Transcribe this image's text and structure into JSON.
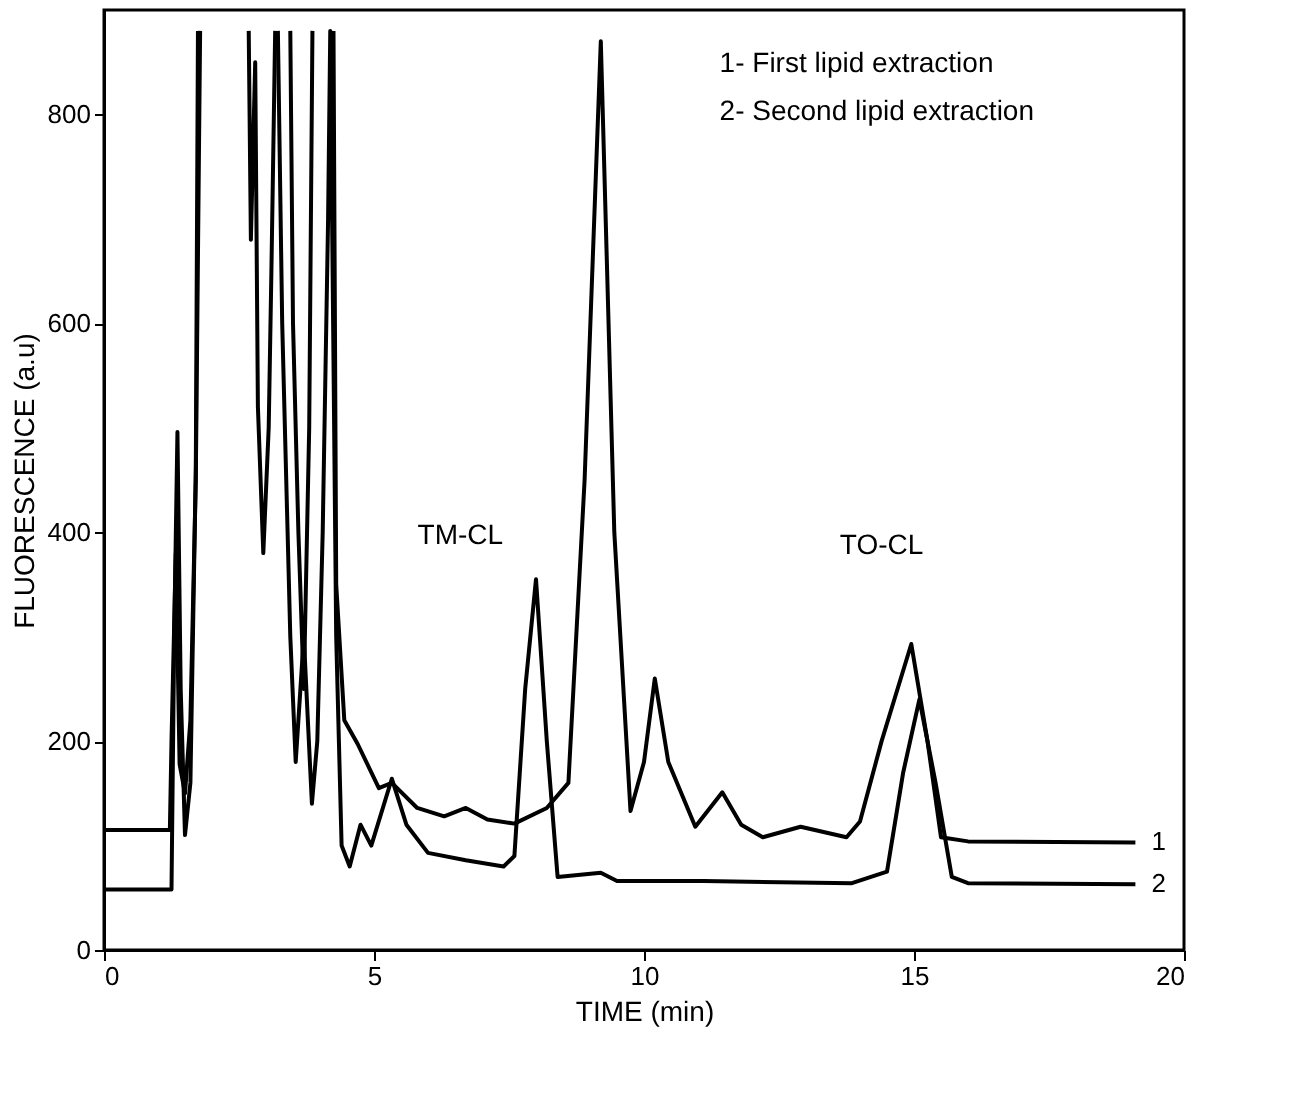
{
  "chart_data": {
    "type": "line",
    "xlabel": "TIME (min)",
    "ylabel": "FLUORESCENCE (a.u)",
    "xlim": [
      0,
      20
    ],
    "xticks": [
      0,
      5,
      10,
      15,
      20
    ],
    "ylim": [
      0,
      900
    ],
    "yticks": [
      0,
      200,
      400,
      600,
      800
    ],
    "grid": false,
    "marker": "none",
    "line_style": "solid",
    "series": [
      {
        "name": "1",
        "color": "#000000",
        "x": [
          0,
          1.22,
          1.25,
          1.33,
          1.4,
          1.5,
          1.6,
          1.7,
          1.78,
          1.85,
          2.68,
          2.72,
          2.8,
          2.85,
          2.95,
          3.05,
          3.1,
          3.17,
          3.3,
          3.45,
          3.5,
          3.6,
          3.7,
          3.8,
          3.86,
          4.0,
          4.25,
          4.3,
          4.45,
          4.7,
          5.09,
          5.33,
          5.8,
          6.3,
          6.7,
          7.1,
          7.6,
          8.2,
          8.6,
          8.9,
          9.2,
          9.45,
          9.75,
          10.0,
          10.2,
          10.45,
          10.95,
          11.45,
          11.8,
          12.2,
          12.9,
          13.75,
          14.0,
          14.4,
          14.95,
          15.25,
          15.5,
          16.0,
          19.1
        ],
        "values": [
          115,
          115,
          200,
          380,
          178,
          150,
          220,
          450,
          880,
          null,
          880,
          680,
          850,
          520,
          380,
          500,
          650,
          880,
          null,
          880,
          600,
          400,
          250,
          500,
          880,
          null,
          880,
          350,
          220,
          197,
          155,
          160,
          136,
          128,
          136,
          125,
          121,
          136,
          160,
          450,
          870,
          400,
          133,
          180,
          260,
          180,
          118,
          151,
          120,
          108,
          118,
          108,
          123,
          200,
          293,
          200,
          108,
          104,
          103
        ]
      },
      {
        "name": "2",
        "color": "#000000",
        "x": [
          0,
          1.25,
          1.3,
          1.36,
          1.42,
          1.5,
          1.6,
          1.7,
          1.74,
          1.85,
          3.22,
          3.3,
          3.45,
          3.55,
          3.7,
          3.85,
          3.95,
          4.05,
          4.15,
          4.19,
          4.3,
          4.4,
          4.55,
          4.75,
          4.95,
          5.33,
          5.6,
          6.0,
          6.7,
          7.4,
          7.6,
          7.8,
          8.0,
          8.2,
          8.4,
          9.2,
          9.5,
          11.1,
          13.85,
          14.5,
          14.8,
          15.1,
          15.4,
          15.7,
          16.0,
          19.1
        ],
        "values": [
          58,
          58,
          300,
          496,
          250,
          110,
          160,
          460,
          880,
          null,
          880,
          600,
          300,
          180,
          300,
          140,
          200,
          400,
          700,
          880,
          300,
          100,
          80,
          120,
          100,
          164,
          120,
          93,
          86,
          80,
          90,
          250,
          355,
          200,
          70,
          74,
          66,
          66,
          64,
          75,
          170,
          240,
          160,
          70,
          64,
          63
        ]
      }
    ],
    "annotations": [
      "1- First lipid extraction",
      "2- Second lipid extraction",
      "TM-CL",
      "TO-CL"
    ]
  }
}
